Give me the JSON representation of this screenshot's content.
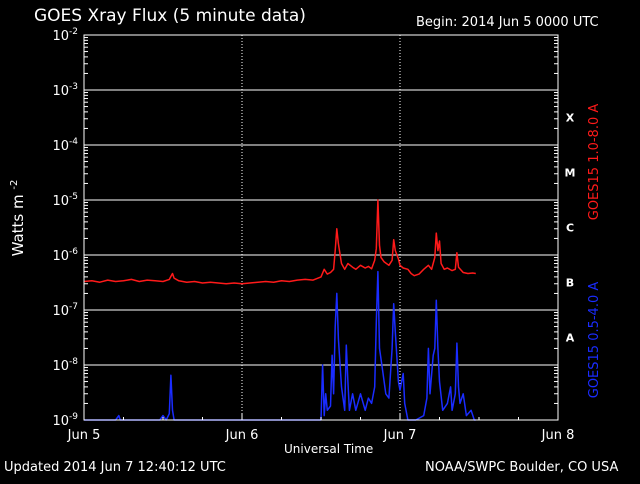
{
  "header": {
    "title": "GOES Xray Flux (5 minute data)",
    "begin_label": "Begin:  2014 Jun 5 0000 UTC"
  },
  "footer": {
    "updated": "Updated 2014 Jun  7 12:40:12 UTC",
    "credit": "NOAA/SWPC Boulder, CO USA"
  },
  "chart_data": {
    "type": "line",
    "title": "GOES Xray Flux (5 minute data)",
    "xlabel": "Universal Time",
    "ylabel_main": "Watts m",
    "ylabel_exp": "-2",
    "yscale": "log",
    "ylim": [
      1e-09,
      0.01
    ],
    "xlim": [
      0,
      3
    ],
    "grid": true,
    "x_ticks": [
      {
        "value": 0,
        "label": "Jun 5"
      },
      {
        "value": 1,
        "label": "Jun 6"
      },
      {
        "value": 2,
        "label": "Jun 7"
      },
      {
        "value": 3,
        "label": "Jun 8"
      }
    ],
    "y_ticks": [
      {
        "exp": -9,
        "base": "10",
        "sup": "-9"
      },
      {
        "exp": -8,
        "base": "10",
        "sup": "-8"
      },
      {
        "exp": -7,
        "base": "10",
        "sup": "-7"
      },
      {
        "exp": -6,
        "base": "10",
        "sup": "-6"
      },
      {
        "exp": -5,
        "base": "10",
        "sup": "-5"
      },
      {
        "exp": -4,
        "base": "10",
        "sup": "-4"
      },
      {
        "exp": -3,
        "base": "10",
        "sup": "-3"
      },
      {
        "exp": -2,
        "base": "10",
        "sup": "-2"
      }
    ],
    "flare_classes": [
      {
        "label": "A",
        "exp": -7.5
      },
      {
        "label": "B",
        "exp": -6.5
      },
      {
        "label": "C",
        "exp": -5.5
      },
      {
        "label": "M",
        "exp": -4.5
      },
      {
        "label": "X",
        "exp": -3.5
      }
    ],
    "series": [
      {
        "name": "GOES15 1.0-8.0 A",
        "color": "#ff1a1a",
        "points": [
          [
            0.0,
            3.3e-07
          ],
          [
            0.05,
            3.4e-07
          ],
          [
            0.1,
            3.2e-07
          ],
          [
            0.15,
            3.5e-07
          ],
          [
            0.2,
            3.3e-07
          ],
          [
            0.25,
            3.4e-07
          ],
          [
            0.3,
            3.6e-07
          ],
          [
            0.35,
            3.3e-07
          ],
          [
            0.4,
            3.5e-07
          ],
          [
            0.45,
            3.4e-07
          ],
          [
            0.5,
            3.3e-07
          ],
          [
            0.54,
            3.6e-07
          ],
          [
            0.56,
            4.6e-07
          ],
          [
            0.57,
            3.8e-07
          ],
          [
            0.6,
            3.4e-07
          ],
          [
            0.65,
            3.2e-07
          ],
          [
            0.7,
            3.3e-07
          ],
          [
            0.75,
            3.1e-07
          ],
          [
            0.8,
            3.2e-07
          ],
          [
            0.85,
            3.1e-07
          ],
          [
            0.9,
            3e-07
          ],
          [
            0.95,
            3.1e-07
          ],
          [
            1.0,
            3e-07
          ],
          [
            1.05,
            3.1e-07
          ],
          [
            1.1,
            3.2e-07
          ],
          [
            1.15,
            3.3e-07
          ],
          [
            1.2,
            3.2e-07
          ],
          [
            1.25,
            3.4e-07
          ],
          [
            1.3,
            3.3e-07
          ],
          [
            1.35,
            3.5e-07
          ],
          [
            1.4,
            3.6e-07
          ],
          [
            1.45,
            3.5e-07
          ],
          [
            1.5,
            4e-07
          ],
          [
            1.52,
            5.5e-07
          ],
          [
            1.54,
            4.5e-07
          ],
          [
            1.56,
            4.8e-07
          ],
          [
            1.58,
            5.5e-07
          ],
          [
            1.59,
            1.2e-06
          ],
          [
            1.6,
            3e-06
          ],
          [
            1.61,
            1.6e-06
          ],
          [
            1.63,
            7e-07
          ],
          [
            1.65,
            5.5e-07
          ],
          [
            1.67,
            7e-07
          ],
          [
            1.7,
            6e-07
          ],
          [
            1.72,
            5.5e-07
          ],
          [
            1.75,
            6.5e-07
          ],
          [
            1.78,
            5.8e-07
          ],
          [
            1.8,
            6.2e-07
          ],
          [
            1.82,
            5.6e-07
          ],
          [
            1.84,
            8e-07
          ],
          [
            1.85,
            1.3e-06
          ],
          [
            1.86,
            1e-05
          ],
          [
            1.87,
            1.5e-06
          ],
          [
            1.88,
            9e-07
          ],
          [
            1.9,
            7.5e-07
          ],
          [
            1.93,
            6.5e-07
          ],
          [
            1.95,
            8e-07
          ],
          [
            1.96,
            1.9e-06
          ],
          [
            1.97,
            1.2e-06
          ],
          [
            1.99,
            8.5e-07
          ],
          [
            2.0,
            6.5e-07
          ],
          [
            2.02,
            5.8e-07
          ],
          [
            2.05,
            5.5e-07
          ],
          [
            2.07,
            4.6e-07
          ],
          [
            2.09,
            4.2e-07
          ],
          [
            2.12,
            4.5e-07
          ],
          [
            2.15,
            5.5e-07
          ],
          [
            2.18,
            6.5e-07
          ],
          [
            2.2,
            5.5e-07
          ],
          [
            2.22,
            9e-07
          ],
          [
            2.23,
            2.5e-06
          ],
          [
            2.24,
            1.2e-06
          ],
          [
            2.25,
            1.8e-06
          ],
          [
            2.26,
            7e-07
          ],
          [
            2.28,
            5.5e-07
          ],
          [
            2.3,
            5.8e-07
          ],
          [
            2.33,
            5.2e-07
          ],
          [
            2.35,
            5.5e-07
          ],
          [
            2.36,
            1.1e-06
          ],
          [
            2.37,
            6e-07
          ],
          [
            2.4,
            4.8e-07
          ],
          [
            2.43,
            4.6e-07
          ],
          [
            2.46,
            4.7e-07
          ],
          [
            2.48,
            4.6e-07
          ]
        ]
      },
      {
        "name": "GOES15 0.5-4.0 A",
        "color": "#1a2cff",
        "points": [
          [
            0.0,
            1e-09
          ],
          [
            0.2,
            1e-09
          ],
          [
            0.22,
            1.2e-09
          ],
          [
            0.23,
            1e-09
          ],
          [
            0.48,
            1e-09
          ],
          [
            0.5,
            1.2e-09
          ],
          [
            0.52,
            1e-09
          ],
          [
            0.54,
            1.3e-09
          ],
          [
            0.55,
            6.5e-09
          ],
          [
            0.56,
            1.5e-09
          ],
          [
            0.57,
            1e-09
          ],
          [
            1.0,
            1e-09
          ],
          [
            1.5,
            1e-09
          ],
          [
            1.51,
            1e-08
          ],
          [
            1.52,
            1.2e-09
          ],
          [
            1.53,
            3e-09
          ],
          [
            1.54,
            1.5e-09
          ],
          [
            1.56,
            1.8e-09
          ],
          [
            1.57,
            1.5e-08
          ],
          [
            1.58,
            3e-09
          ],
          [
            1.59,
            5e-08
          ],
          [
            1.6,
            2e-07
          ],
          [
            1.61,
            3e-08
          ],
          [
            1.63,
            4e-09
          ],
          [
            1.65,
            1.5e-09
          ],
          [
            1.66,
            2.3e-08
          ],
          [
            1.67,
            5e-09
          ],
          [
            1.68,
            1.5e-09
          ],
          [
            1.7,
            3e-09
          ],
          [
            1.72,
            1.5e-09
          ],
          [
            1.75,
            3e-09
          ],
          [
            1.78,
            1.5e-09
          ],
          [
            1.8,
            2.5e-09
          ],
          [
            1.82,
            2e-09
          ],
          [
            1.84,
            4e-09
          ],
          [
            1.85,
            6e-08
          ],
          [
            1.86,
            5e-07
          ],
          [
            1.87,
            2e-08
          ],
          [
            1.89,
            8e-09
          ],
          [
            1.91,
            3e-09
          ],
          [
            1.93,
            2.5e-09
          ],
          [
            1.95,
            2e-08
          ],
          [
            1.96,
            1.3e-07
          ],
          [
            1.97,
            4e-08
          ],
          [
            1.99,
            5e-09
          ],
          [
            2.0,
            3.5e-09
          ],
          [
            2.02,
            7e-09
          ],
          [
            2.03,
            2e-09
          ],
          [
            2.05,
            1e-09
          ],
          [
            2.1,
            1e-09
          ],
          [
            2.15,
            1.2e-09
          ],
          [
            2.17,
            2.5e-09
          ],
          [
            2.18,
            2e-08
          ],
          [
            2.19,
            3e-09
          ],
          [
            2.21,
            1.5e-08
          ],
          [
            2.22,
            2e-08
          ],
          [
            2.23,
            1.5e-07
          ],
          [
            2.24,
            2e-08
          ],
          [
            2.25,
            5e-09
          ],
          [
            2.27,
            1.5e-09
          ],
          [
            2.3,
            2e-09
          ],
          [
            2.32,
            4e-09
          ],
          [
            2.33,
            1.5e-09
          ],
          [
            2.35,
            3e-09
          ],
          [
            2.36,
            2.5e-08
          ],
          [
            2.37,
            4e-09
          ],
          [
            2.38,
            2e-09
          ],
          [
            2.4,
            3e-09
          ],
          [
            2.42,
            1.2e-09
          ],
          [
            2.45,
            1.5e-09
          ],
          [
            2.47,
            1e-09
          ],
          [
            2.48,
            1e-09
          ]
        ]
      }
    ]
  }
}
